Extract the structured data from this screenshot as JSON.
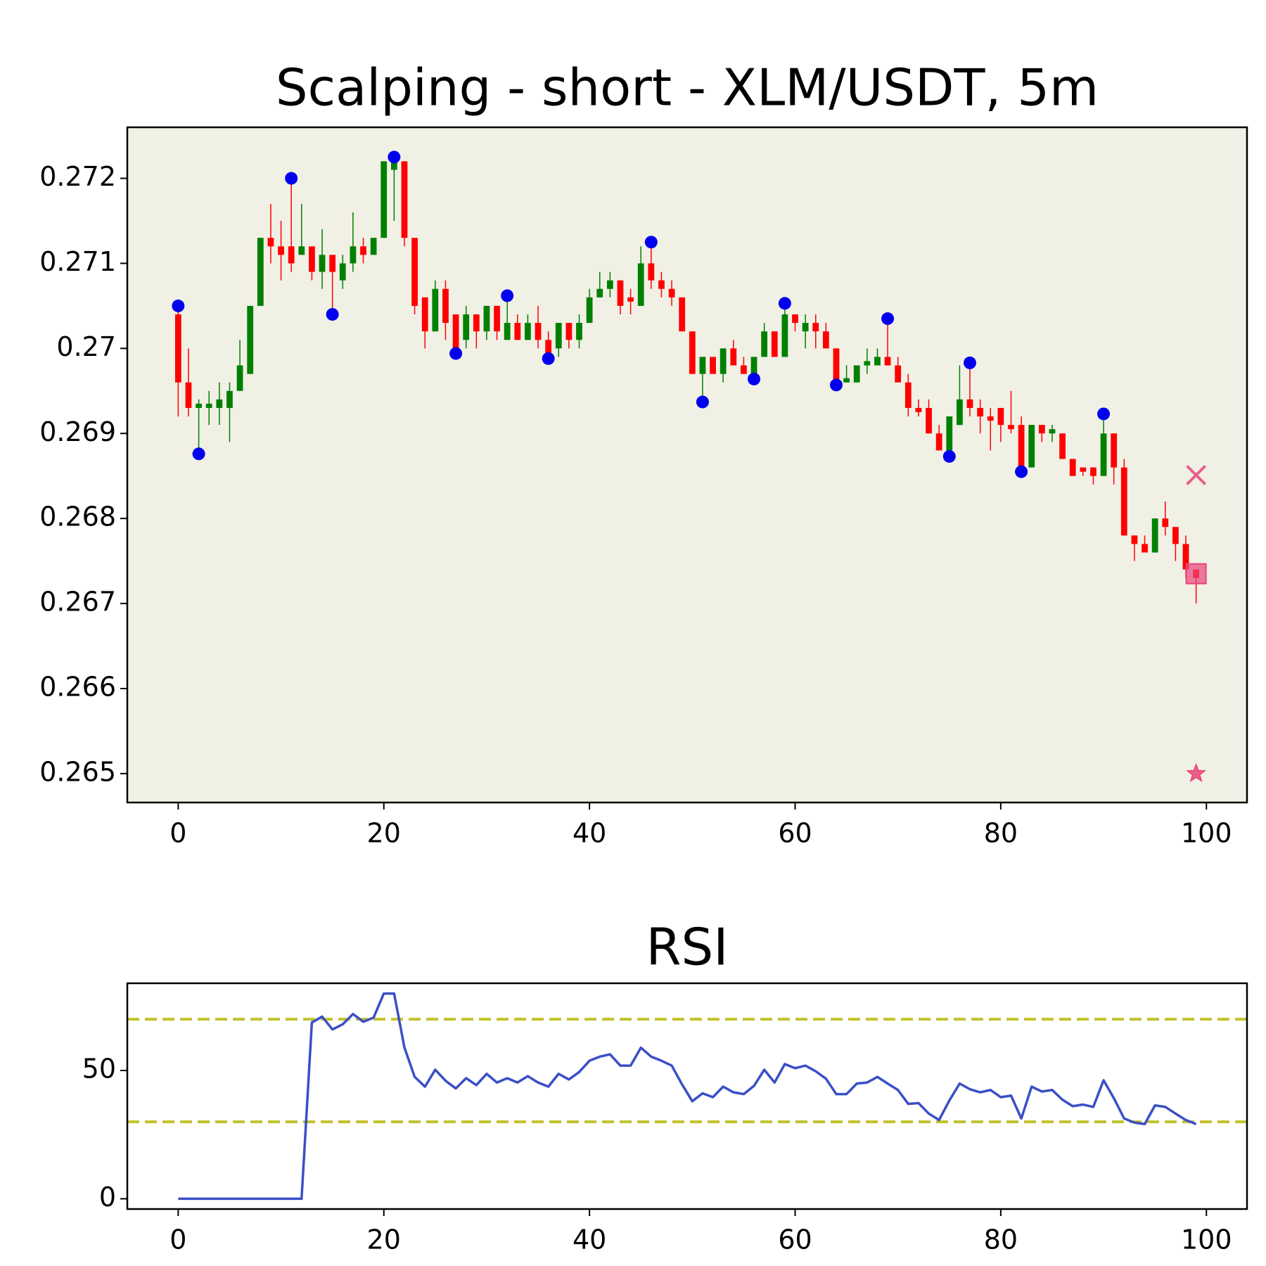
{
  "chart_data": [
    {
      "type": "candlestick",
      "title": "Scalping - short - XLM/USDT, 5m",
      "x": [
        0,
        1,
        2,
        3,
        4,
        5,
        6,
        7,
        8,
        9,
        10,
        11,
        12,
        13,
        14,
        15,
        16,
        17,
        18,
        19,
        20,
        21,
        22,
        23,
        24,
        25,
        26,
        27,
        28,
        29,
        30,
        31,
        32,
        33,
        34,
        35,
        36,
        37,
        38,
        39,
        40,
        41,
        42,
        43,
        44,
        45,
        46,
        47,
        48,
        49,
        50,
        51,
        52,
        53,
        54,
        55,
        56,
        57,
        58,
        59,
        60,
        61,
        62,
        63,
        64,
        65,
        66,
        67,
        68,
        69,
        70,
        71,
        72,
        73,
        74,
        75,
        76,
        77,
        78,
        79,
        80,
        81,
        82,
        83,
        84,
        85,
        86,
        87,
        88,
        89,
        90,
        91,
        92,
        93,
        94,
        95,
        96,
        97,
        98,
        99
      ],
      "open": [
        0.2704,
        0.2696,
        0.2693,
        0.2693,
        0.2693,
        0.2693,
        0.2695,
        0.2697,
        0.2705,
        0.2713,
        0.2712,
        0.2712,
        0.2711,
        0.2712,
        0.2709,
        0.2711,
        0.2708,
        0.271,
        0.2712,
        0.2711,
        0.2713,
        0.2721,
        0.2722,
        0.2713,
        0.2706,
        0.2702,
        0.2707,
        0.2704,
        0.2701,
        0.2704,
        0.2702,
        0.2705,
        0.2701,
        0.2703,
        0.2701,
        0.2703,
        0.2701,
        0.27,
        0.2703,
        0.2701,
        0.2703,
        0.2706,
        0.2707,
        0.2708,
        0.2706,
        0.2705,
        0.271,
        0.2708,
        0.2707,
        0.2706,
        0.2702,
        0.2697,
        0.2699,
        0.2697,
        0.27,
        0.2698,
        0.2697,
        0.2699,
        0.2702,
        0.2699,
        0.2704,
        0.2702,
        0.2703,
        0.2702,
        0.27,
        0.2696,
        0.2696,
        0.2698,
        0.2698,
        0.2699,
        0.2698,
        0.2696,
        0.2693,
        0.2693,
        0.269,
        0.2688,
        0.2691,
        0.2694,
        0.2693,
        0.2692,
        0.2693,
        0.2691,
        0.2691,
        0.2686,
        0.2691,
        0.269,
        0.269,
        0.2687,
        0.2686,
        0.2686,
        0.2685,
        0.269,
        0.2686,
        0.2678,
        0.2677,
        0.2676,
        0.268,
        0.2679,
        0.2677,
        0.2674
      ],
      "high": [
        0.2705,
        0.27,
        0.2694,
        0.2695,
        0.2696,
        0.2696,
        0.2701,
        0.2705,
        0.2713,
        0.2717,
        0.2715,
        0.272,
        0.2717,
        0.2712,
        0.2714,
        0.2711,
        0.2711,
        0.2716,
        0.2713,
        0.2713,
        0.2722,
        0.27225,
        0.2722,
        0.2713,
        0.2706,
        0.2708,
        0.2708,
        0.2704,
        0.2705,
        0.2704,
        0.2705,
        0.2705,
        0.2706,
        0.2704,
        0.2704,
        0.2705,
        0.2702,
        0.2703,
        0.2703,
        0.2704,
        0.2707,
        0.2709,
        0.2709,
        0.2708,
        0.2707,
        0.2712,
        0.27125,
        0.2709,
        0.2708,
        0.2706,
        0.2702,
        0.2699,
        0.2699,
        0.27,
        0.2701,
        0.2699,
        0.2699,
        0.2703,
        0.2702,
        0.27053,
        0.2704,
        0.2704,
        0.2704,
        0.2703,
        0.27,
        0.2698,
        0.2698,
        0.27,
        0.27,
        0.27035,
        0.2699,
        0.2697,
        0.2694,
        0.2694,
        0.2691,
        0.2692,
        0.2698,
        0.26983,
        0.2694,
        0.2693,
        0.2693,
        0.2695,
        0.2692,
        0.2691,
        0.2691,
        0.2691,
        0.269,
        0.2687,
        0.2686,
        0.2686,
        0.26923,
        0.269,
        0.2687,
        0.2678,
        0.2678,
        0.268,
        0.2682,
        0.2679,
        0.2678,
        0.2674
      ],
      "low": [
        0.2692,
        0.2692,
        0.2688,
        0.2691,
        0.2691,
        0.2689,
        0.2695,
        0.2697,
        0.2705,
        0.271,
        0.2708,
        0.2709,
        0.2711,
        0.2708,
        0.2707,
        0.2704,
        0.2707,
        0.2709,
        0.271,
        0.2711,
        0.2713,
        0.2715,
        0.2712,
        0.2704,
        0.27,
        0.2702,
        0.2701,
        0.2699,
        0.27,
        0.27,
        0.2701,
        0.2701,
        0.2701,
        0.2701,
        0.2701,
        0.27,
        0.2699,
        0.2699,
        0.27,
        0.27,
        0.2703,
        0.2706,
        0.2706,
        0.2704,
        0.2704,
        0.2705,
        0.2707,
        0.2706,
        0.2705,
        0.2702,
        0.2697,
        0.26937,
        0.2697,
        0.2696,
        0.2698,
        0.2697,
        0.26964,
        0.2699,
        0.2699,
        0.2699,
        0.2702,
        0.27,
        0.27,
        0.27,
        0.26957,
        0.2696,
        0.2696,
        0.2697,
        0.2698,
        0.2698,
        0.2696,
        0.2692,
        0.2692,
        0.269,
        0.2688,
        0.26873,
        0.2691,
        0.2692,
        0.269,
        0.2688,
        0.2689,
        0.269,
        0.26855,
        0.2686,
        0.2689,
        0.2689,
        0.2687,
        0.2685,
        0.2685,
        0.2684,
        0.2685,
        0.2684,
        0.2678,
        0.2675,
        0.2676,
        0.2676,
        0.2678,
        0.2675,
        0.2673,
        0.267
      ],
      "close": [
        0.2696,
        0.2693,
        0.26935,
        0.26935,
        0.2694,
        0.2695,
        0.2698,
        0.2705,
        0.2713,
        0.2712,
        0.2711,
        0.271,
        0.2712,
        0.2709,
        0.2711,
        0.2709,
        0.271,
        0.2712,
        0.2711,
        0.2713,
        0.2722,
        0.2722,
        0.2713,
        0.2705,
        0.2702,
        0.2707,
        0.2703,
        0.27,
        0.2704,
        0.2702,
        0.2705,
        0.2702,
        0.2703,
        0.2701,
        0.2703,
        0.2701,
        0.2699,
        0.2703,
        0.2701,
        0.2703,
        0.2706,
        0.2707,
        0.2708,
        0.2705,
        0.27055,
        0.271,
        0.2708,
        0.2707,
        0.2706,
        0.2702,
        0.2697,
        0.2699,
        0.2697,
        0.27,
        0.2698,
        0.2697,
        0.2699,
        0.2702,
        0.2699,
        0.2704,
        0.2703,
        0.2703,
        0.2702,
        0.27,
        0.2696,
        0.26965,
        0.2698,
        0.26985,
        0.2699,
        0.2698,
        0.2696,
        0.2693,
        0.26925,
        0.269,
        0.2688,
        0.2692,
        0.2694,
        0.2693,
        0.2692,
        0.26915,
        0.2691,
        0.26905,
        0.2686,
        0.2691,
        0.269,
        0.26905,
        0.2687,
        0.2685,
        0.26855,
        0.2685,
        0.269,
        0.2686,
        0.2678,
        0.2677,
        0.2676,
        0.268,
        0.2679,
        0.2677,
        0.2674,
        0.2673
      ],
      "up_color": "#008000",
      "down_color": "#ff0000",
      "background": "#f1f0e5",
      "pivots": {
        "color": "#0000ee",
        "x": [
          0,
          2,
          11,
          15,
          21,
          27,
          32,
          36,
          46,
          51,
          56,
          59,
          64,
          69,
          75,
          77,
          82,
          90
        ],
        "y": [
          0.2705,
          0.26876,
          0.272,
          0.2704,
          0.27225,
          0.26994,
          0.27062,
          0.26988,
          0.27125,
          0.26937,
          0.26964,
          0.27053,
          0.26957,
          0.27035,
          0.26873,
          0.26983,
          0.26855,
          0.26923
        ]
      },
      "markers": {
        "color": "#e8457a",
        "shape": [
          "x",
          "square",
          "star"
        ],
        "x": [
          99,
          99,
          99
        ],
        "y": [
          0.26851,
          0.26735,
          0.265
        ]
      },
      "xlim": [
        -4.95,
        103.95
      ],
      "ylim": [
        0.26466,
        0.2726
      ],
      "xticks": [
        0,
        20,
        40,
        60,
        80,
        100
      ],
      "yticks": [
        0.265,
        0.266,
        0.267,
        0.268,
        0.269,
        0.27,
        0.271,
        0.272
      ]
    },
    {
      "type": "line",
      "title": "RSI",
      "x": [
        0,
        1,
        2,
        3,
        4,
        5,
        6,
        7,
        8,
        9,
        10,
        11,
        12,
        13,
        14,
        15,
        16,
        17,
        18,
        19,
        20,
        21,
        22,
        23,
        24,
        25,
        26,
        27,
        28,
        29,
        30,
        31,
        32,
        33,
        34,
        35,
        36,
        37,
        38,
        39,
        40,
        41,
        42,
        43,
        44,
        45,
        46,
        47,
        48,
        49,
        50,
        51,
        52,
        53,
        54,
        55,
        56,
        57,
        58,
        59,
        60,
        61,
        62,
        63,
        64,
        65,
        66,
        67,
        68,
        69,
        70,
        71,
        72,
        73,
        74,
        75,
        76,
        77,
        78,
        79,
        80,
        81,
        82,
        83,
        84,
        85,
        86,
        87,
        88,
        89,
        90,
        91,
        92,
        93,
        94,
        95,
        96,
        97,
        98,
        99
      ],
      "values": [
        0,
        0,
        0,
        0,
        0,
        0,
        0,
        0,
        0,
        0,
        0,
        0,
        0,
        68.7,
        71,
        66,
        68,
        72,
        69,
        70.6,
        80,
        80,
        59,
        47.5,
        43.7,
        50.3,
        46,
        43,
        47,
        44.3,
        48.7,
        45.3,
        47,
        45.3,
        47.8,
        45.3,
        43.7,
        48.7,
        46.5,
        49.4,
        53.8,
        55.4,
        56.3,
        51.9,
        51.9,
        58.9,
        55.4,
        53.8,
        51.9,
        44.6,
        38,
        41.1,
        39.6,
        43.7,
        41.5,
        40.8,
        44,
        50.3,
        45.3,
        52.5,
        50.9,
        51.9,
        49.7,
        46.8,
        40.8,
        40.8,
        44.9,
        45.3,
        47.5,
        44.9,
        42.4,
        37,
        37.3,
        33.2,
        30.7,
        38.3,
        44.9,
        42.7,
        41.5,
        42.4,
        39.6,
        40.2,
        31.3,
        43.7,
        41.8,
        42.4,
        38.6,
        36.1,
        36.7,
        35.8,
        46.2,
        39.2,
        31.3,
        29.7,
        29.1,
        36.4,
        35.8,
        33.2,
        30.7,
        29.1
      ],
      "color": "#3a4fc6",
      "hlines": {
        "color": "#c3c22c",
        "values": [
          70,
          30
        ]
      },
      "xlim": [
        -4.95,
        103.95
      ],
      "ylim": [
        -4,
        84
      ],
      "xticks": [
        0,
        20,
        40,
        60,
        80,
        100
      ],
      "yticks": [
        0,
        50
      ]
    }
  ]
}
